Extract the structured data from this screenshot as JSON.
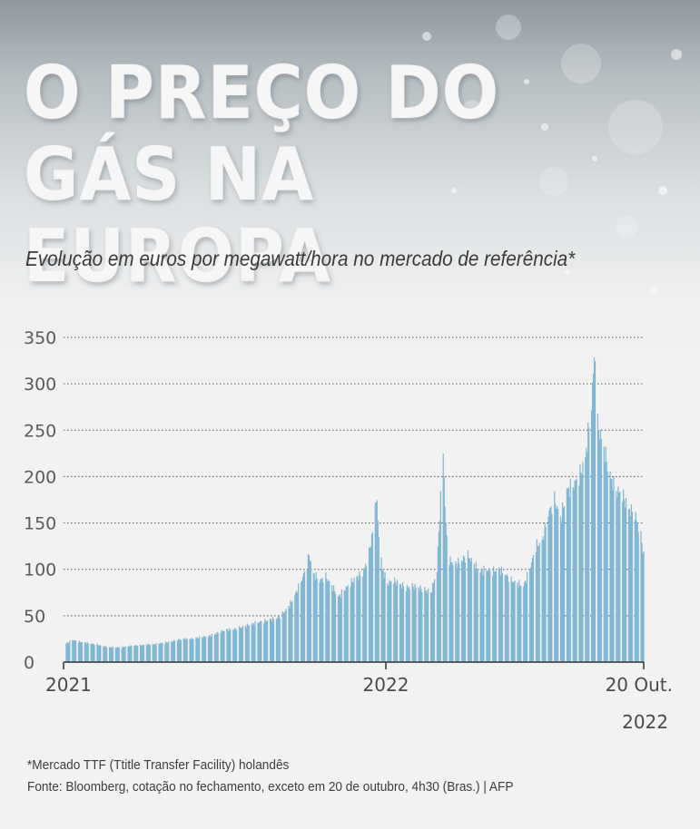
{
  "title_line1": "O PREÇO DO",
  "title_line2": "GÁS NA EUROPA",
  "subtitle": "Evolução em euros por megawatt/hora no mercado de referência*",
  "footnote": "*Mercado TTF (Ttitle Transfer Facility) holandês",
  "source": "Fonte: Bloomberg, cotação no fechamento, exceto em 20 de outubro, 4h30 (Bras.) | AFP",
  "colors": {
    "bar": "#7fb6d4",
    "grid": "#555555",
    "axis": "#333333"
  },
  "chart_data": {
    "type": "bar",
    "title": "O PREÇO DO GÁS NA EUROPA",
    "subtitle": "Evolução em euros por megawatt/hora no mercado de referência*",
    "unit": "euros por megawatt/hora",
    "ylim": [
      0,
      350
    ],
    "y_ticks": [
      0,
      50,
      100,
      150,
      200,
      250,
      300,
      350
    ],
    "x_ticks": [
      {
        "date": "2021-01-01",
        "label": "2021"
      },
      {
        "date": "2022-01-01",
        "label": "2022"
      },
      {
        "date": "2022-10-20",
        "label": "20 Out.",
        "label2": "2022"
      }
    ],
    "grid": "horizontal dotted",
    "series": [
      {
        "points": [
          [
            "2021-01-04",
            20
          ],
          [
            "2021-01-11",
            24
          ],
          [
            "2021-01-18",
            22
          ],
          [
            "2021-01-25",
            21
          ],
          [
            "2021-02-01",
            20
          ],
          [
            "2021-02-08",
            19
          ],
          [
            "2021-02-15",
            17
          ],
          [
            "2021-02-22",
            16
          ],
          [
            "2021-03-01",
            16
          ],
          [
            "2021-03-08",
            16
          ],
          [
            "2021-03-15",
            17
          ],
          [
            "2021-03-22",
            18
          ],
          [
            "2021-03-29",
            18
          ],
          [
            "2021-04-05",
            19
          ],
          [
            "2021-04-12",
            19
          ],
          [
            "2021-04-19",
            20
          ],
          [
            "2021-04-26",
            21
          ],
          [
            "2021-05-03",
            22
          ],
          [
            "2021-05-10",
            24
          ],
          [
            "2021-05-17",
            25
          ],
          [
            "2021-05-24",
            25
          ],
          [
            "2021-05-31",
            26
          ],
          [
            "2021-06-07",
            27
          ],
          [
            "2021-06-14",
            28
          ],
          [
            "2021-06-21",
            30
          ],
          [
            "2021-06-28",
            33
          ],
          [
            "2021-07-05",
            35
          ],
          [
            "2021-07-12",
            35
          ],
          [
            "2021-07-19",
            37
          ],
          [
            "2021-07-26",
            39
          ],
          [
            "2021-08-02",
            41
          ],
          [
            "2021-08-09",
            43
          ],
          [
            "2021-08-16",
            44
          ],
          [
            "2021-08-23",
            46
          ],
          [
            "2021-08-30",
            47
          ],
          [
            "2021-09-06",
            52
          ],
          [
            "2021-09-13",
            60
          ],
          [
            "2021-09-20",
            72
          ],
          [
            "2021-09-27",
            87
          ],
          [
            "2021-10-04",
            105
          ],
          [
            "2021-10-06",
            116
          ],
          [
            "2021-10-11",
            95
          ],
          [
            "2021-10-18",
            88
          ],
          [
            "2021-10-25",
            92
          ],
          [
            "2021-11-01",
            82
          ],
          [
            "2021-11-08",
            70
          ],
          [
            "2021-11-15",
            78
          ],
          [
            "2021-11-22",
            85
          ],
          [
            "2021-11-29",
            92
          ],
          [
            "2021-12-06",
            95
          ],
          [
            "2021-12-13",
            118
          ],
          [
            "2021-12-17",
            140
          ],
          [
            "2021-12-21",
            180
          ],
          [
            "2021-12-24",
            140
          ],
          [
            "2021-12-28",
            100
          ],
          [
            "2022-01-03",
            85
          ],
          [
            "2022-01-10",
            88
          ],
          [
            "2022-01-17",
            84
          ],
          [
            "2022-01-24",
            80
          ],
          [
            "2022-01-31",
            82
          ],
          [
            "2022-02-07",
            80
          ],
          [
            "2022-02-14",
            78
          ],
          [
            "2022-02-21",
            75
          ],
          [
            "2022-02-28",
            100
          ],
          [
            "2022-03-03",
            160
          ],
          [
            "2022-03-07",
            227
          ],
          [
            "2022-03-10",
            145
          ],
          [
            "2022-03-14",
            110
          ],
          [
            "2022-03-21",
            105
          ],
          [
            "2022-03-28",
            110
          ],
          [
            "2022-04-04",
            115
          ],
          [
            "2022-04-11",
            105
          ],
          [
            "2022-04-18",
            98
          ],
          [
            "2022-04-25",
            100
          ],
          [
            "2022-05-02",
            98
          ],
          [
            "2022-05-09",
            100
          ],
          [
            "2022-05-16",
            95
          ],
          [
            "2022-05-23",
            88
          ],
          [
            "2022-05-30",
            85
          ],
          [
            "2022-06-06",
            82
          ],
          [
            "2022-06-13",
            100
          ],
          [
            "2022-06-20",
            125
          ],
          [
            "2022-06-27",
            130
          ],
          [
            "2022-07-04",
            160
          ],
          [
            "2022-07-11",
            175
          ],
          [
            "2022-07-18",
            155
          ],
          [
            "2022-07-25",
            185
          ],
          [
            "2022-08-01",
            190
          ],
          [
            "2022-08-08",
            200
          ],
          [
            "2022-08-15",
            220
          ],
          [
            "2022-08-22",
            280
          ],
          [
            "2022-08-26",
            340
          ],
          [
            "2022-08-29",
            255
          ],
          [
            "2022-09-05",
            230
          ],
          [
            "2022-09-12",
            200
          ],
          [
            "2022-09-19",
            185
          ],
          [
            "2022-09-26",
            180
          ],
          [
            "2022-10-03",
            165
          ],
          [
            "2022-10-10",
            160
          ],
          [
            "2022-10-17",
            135
          ],
          [
            "2022-10-20",
            115
          ]
        ]
      }
    ]
  }
}
